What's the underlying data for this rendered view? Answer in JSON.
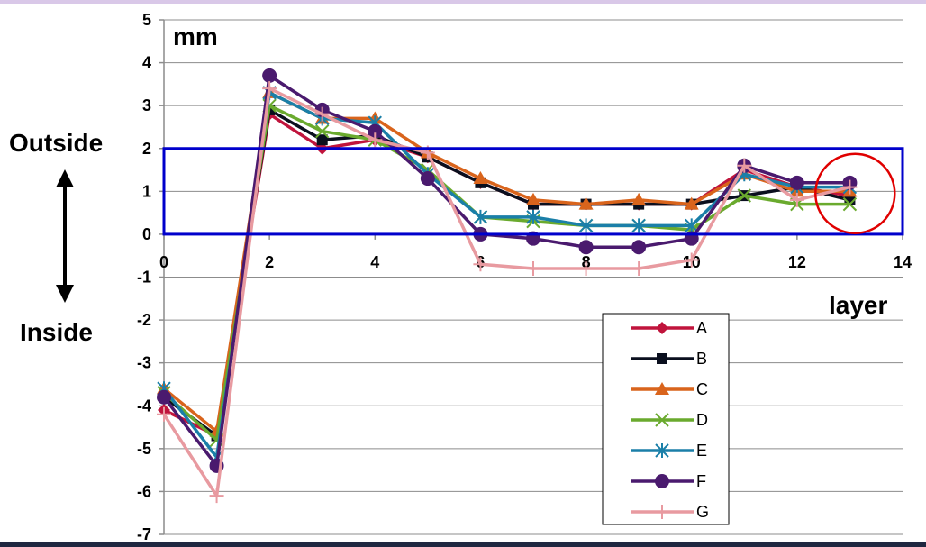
{
  "chart_data": {
    "type": "line",
    "x_unit_label": "layer",
    "y_unit_label": "mm",
    "side_labels": {
      "outside": "Outside",
      "inside": "Inside"
    },
    "xlim": [
      0,
      14
    ],
    "ylim": [
      -7,
      5
    ],
    "x_ticks": [
      0,
      2,
      4,
      6,
      8,
      10,
      12,
      14
    ],
    "y_ticks": [
      5,
      4,
      3,
      2,
      1,
      0,
      -1,
      -2,
      -3,
      -4,
      -5,
      -6,
      -7
    ],
    "grid": "horizontal",
    "legend_position": "bottom-right",
    "x": [
      0,
      1,
      2,
      3,
      4,
      5,
      6,
      7,
      8,
      9,
      10,
      11,
      12,
      13
    ],
    "series": [
      {
        "name": "A",
        "color": "#c0143c",
        "marker": "diamond",
        "values": [
          -4.1,
          -4.7,
          2.8,
          2.0,
          2.2,
          1.8,
          1.2,
          0.7,
          0.7,
          0.7,
          0.7,
          1.5,
          1.1,
          0.9
        ]
      },
      {
        "name": "B",
        "color": "#0a0f1e",
        "marker": "square",
        "values": [
          -3.8,
          -4.7,
          2.9,
          2.2,
          2.3,
          1.8,
          1.2,
          0.7,
          0.7,
          0.7,
          0.7,
          0.9,
          1.1,
          0.8
        ]
      },
      {
        "name": "C",
        "color": "#d9641c",
        "marker": "triangle",
        "values": [
          -3.6,
          -4.6,
          3.3,
          2.7,
          2.7,
          1.9,
          1.3,
          0.8,
          0.7,
          0.8,
          0.7,
          1.4,
          1.0,
          1.0
        ]
      },
      {
        "name": "D",
        "color": "#6aaa2e",
        "marker": "x",
        "values": [
          -3.7,
          -4.8,
          3.0,
          2.4,
          2.2,
          1.5,
          0.4,
          0.3,
          0.2,
          0.2,
          0.1,
          0.9,
          0.7,
          0.7
        ]
      },
      {
        "name": "E",
        "color": "#1a7fa8",
        "marker": "asterisk",
        "values": [
          -3.6,
          -5.2,
          3.3,
          2.7,
          2.6,
          1.4,
          0.4,
          0.4,
          0.2,
          0.2,
          0.2,
          1.4,
          1.1,
          1.1
        ]
      },
      {
        "name": "F",
        "color": "#4a1a6e",
        "marker": "circle",
        "values": [
          -3.8,
          -5.4,
          3.7,
          2.9,
          2.4,
          1.3,
          0.0,
          -0.1,
          -0.3,
          -0.3,
          -0.1,
          1.6,
          1.2,
          1.2
        ]
      },
      {
        "name": "G",
        "color": "#e89aa0",
        "marker": "plus",
        "values": [
          -4.2,
          -6.1,
          3.4,
          2.8,
          2.2,
          1.9,
          -0.7,
          -0.8,
          -0.8,
          -0.8,
          -0.6,
          1.6,
          0.8,
          1.1
        ]
      }
    ],
    "annotations": {
      "band": {
        "x_from": 0,
        "x_to": 14,
        "y_from": 0,
        "y_to": 2,
        "color": "#0000cc"
      },
      "circle": {
        "x": 13.1,
        "y": 0.95,
        "color": "#e00000"
      }
    }
  }
}
